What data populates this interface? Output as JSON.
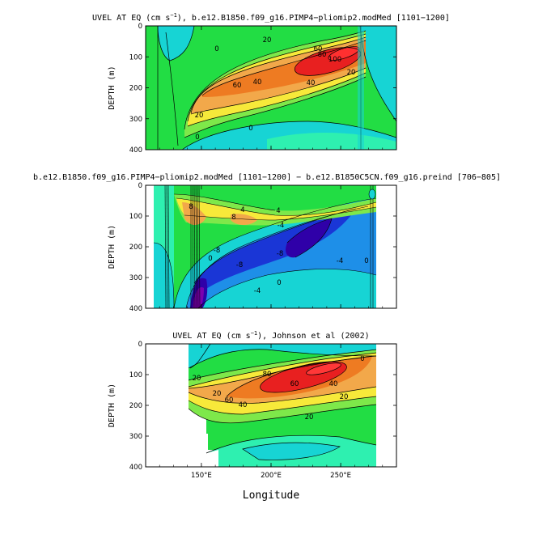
{
  "chart_data": [
    {
      "type": "contour",
      "title_prefix": "UVEL AT EQ (cm s",
      "title_exp": "−1",
      "title_suffix": "), b.e12.B1850.f09_g16.PIMP4−pliomip2.modMed [1101−1200]",
      "ylabel": "DEPTH (m)",
      "ylim": [
        400,
        0
      ],
      "xlim": [
        110,
        290
      ],
      "yticks": [
        "0",
        "100",
        "200",
        "300",
        "400"
      ],
      "contour_labels": [
        "0",
        "20",
        "20",
        "40",
        "40",
        "60",
        "60",
        "80",
        "100",
        "0",
        "0",
        "20"
      ]
    },
    {
      "type": "contour",
      "title": "b.e12.B1850.f09_g16.PIMP4−pliomip2.modMed [1101−1200] − b.e12.B1850C5CN.f09_g16.preind [706−805]",
      "ylabel": "DEPTH (m)",
      "ylim": [
        400,
        0
      ],
      "xlim": [
        110,
        290
      ],
      "yticks": [
        "0",
        "100",
        "200",
        "300",
        "400"
      ],
      "contour_labels": [
        "8",
        "8",
        "4",
        "4",
        "-4",
        "-8",
        "-8",
        "-8",
        "-4",
        "-4",
        "0",
        "0",
        "0"
      ]
    },
    {
      "type": "contour",
      "title_prefix": "UVEL AT EQ (cm s",
      "title_exp": "−1",
      "title_suffix": "), Johnson et al (2002)",
      "ylabel": "DEPTH (m)",
      "xlabel": "Longitude",
      "ylim": [
        400,
        0
      ],
      "xlim": [
        110,
        290
      ],
      "yticks": [
        "0",
        "100",
        "200",
        "300",
        "400"
      ],
      "xticks": [
        "150°E",
        "200°E",
        "250°E"
      ],
      "contour_labels": [
        "20",
        "20",
        "40",
        "60",
        "80",
        "60",
        "40",
        "20",
        "20",
        "0"
      ]
    }
  ],
  "palette": {
    "neg_deep": "#2f00a8",
    "neg_mid": "#1a36d6",
    "neg_light": "#1e8fe8",
    "near_zero_neg": "#17d4d4",
    "near_zero": "#2ef0b0",
    "zero": "#22dd44",
    "pos_light": "#7ee84a",
    "pos_yellow": "#f7e93a",
    "pos_orange": "#f2a84a",
    "pos_deep": "#ee7b22",
    "pos_red": "#e82020"
  }
}
